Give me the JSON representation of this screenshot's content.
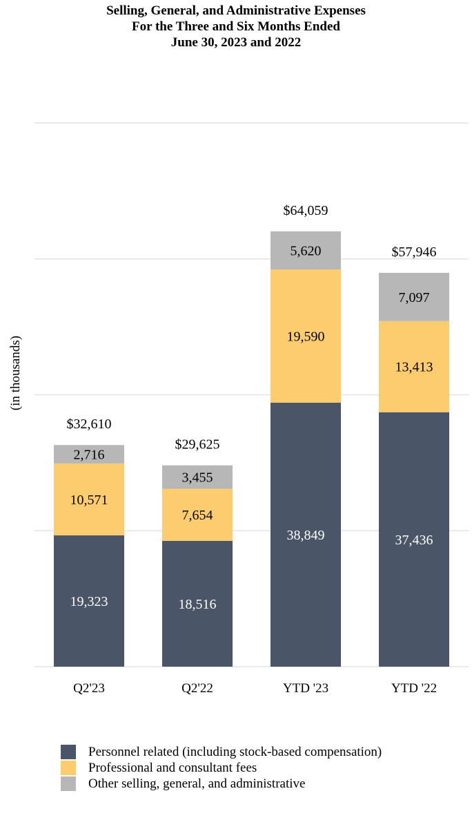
{
  "chart_data": {
    "type": "bar",
    "stacked": true,
    "title": [
      "Selling, General, and Administrative Expenses",
      "For the Three and Six Months Ended",
      "June 30, 2023 and 2022"
    ],
    "xlabel": "",
    "ylabel": "(in thousands)",
    "ylim": [
      0,
      80000
    ],
    "grid": true,
    "categories": [
      "Q2'23",
      "Q2'22",
      "YTD '23",
      "YTD '22"
    ],
    "series": [
      {
        "name": "Personnel related (including stock-based compensation)",
        "color": "#4a5568",
        "values": [
          19323,
          18516,
          38849,
          37436
        ],
        "labels": [
          "19,323",
          "18,516",
          "38,849",
          "37,436"
        ]
      },
      {
        "name": "Professional and consultant fees",
        "color": "#fdcc6e",
        "values": [
          10571,
          7654,
          19590,
          13413
        ],
        "labels": [
          "10,571",
          "7,654",
          "19,590",
          "13,413"
        ]
      },
      {
        "name": "Other selling, general, and administrative",
        "color": "#b7b7b7",
        "values": [
          2716,
          3455,
          5620,
          7097
        ],
        "labels": [
          "2,716",
          "3,455",
          "5,620",
          "7,097"
        ]
      }
    ],
    "totals": [
      32610,
      29625,
      64059,
      57946
    ],
    "total_labels": [
      "$32,610",
      "$29,625",
      "$64,059",
      "$57,946"
    ],
    "legend_position": "bottom-left"
  }
}
